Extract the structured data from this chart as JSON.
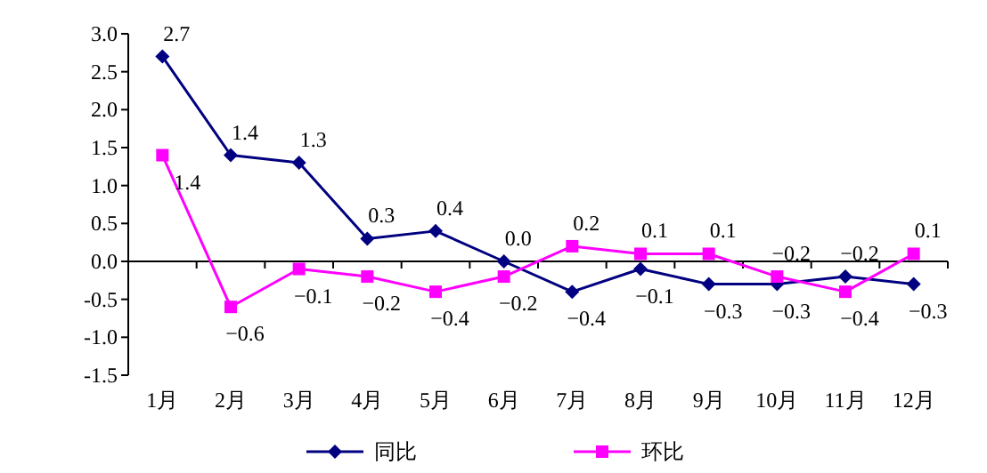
{
  "chart_data": {
    "type": "line",
    "categories": [
      "1月",
      "2月",
      "3月",
      "4月",
      "5月",
      "6月",
      "7月",
      "8月",
      "9月",
      "10月",
      "11月",
      "12月"
    ],
    "series": [
      {
        "name": "同比",
        "color": "#000080",
        "marker": "diamond",
        "values": [
          2.7,
          1.4,
          1.3,
          0.3,
          0.4,
          0.0,
          -0.4,
          -0.1,
          -0.3,
          -0.3,
          -0.2,
          -0.3
        ],
        "value_labels": [
          "2.7",
          "1.4",
          "1.3",
          "0.3",
          "0.4",
          "0.0",
          "−0.4",
          "−0.1",
          "−0.3",
          "−0.3",
          "−0.2",
          "−0.3"
        ]
      },
      {
        "name": "环比",
        "color": "#ff00ff",
        "marker": "square",
        "values": [
          1.4,
          -0.6,
          -0.1,
          -0.2,
          -0.4,
          -0.2,
          0.2,
          0.1,
          0.1,
          -0.2,
          -0.4,
          0.1
        ],
        "value_labels": [
          "1.4",
          "−0.6",
          "−0.1",
          "−0.2",
          "−0.4",
          "−0.2",
          "0.2",
          "0.1",
          "0.1",
          "−0.2",
          "−0.4",
          "0.1"
        ]
      }
    ],
    "ylim": [
      -1.5,
      3.0
    ],
    "yticks": [
      {
        "value": -1.5,
        "label": "-1.5"
      },
      {
        "value": -1.0,
        "label": "-1.0"
      },
      {
        "value": -0.5,
        "label": "-0.5"
      },
      {
        "value": 0,
        "label": "0.0"
      },
      {
        "value": 0.5,
        "label": "0.5"
      },
      {
        "value": 1.0,
        "label": "1.0"
      },
      {
        "value": 1.5,
        "label": "1.5"
      },
      {
        "value": 2.0,
        "label": "2.0"
      },
      {
        "value": 2.5,
        "label": "2.5"
      },
      {
        "value": 3.0,
        "label": "3.0"
      }
    ],
    "legend": "bottom"
  }
}
